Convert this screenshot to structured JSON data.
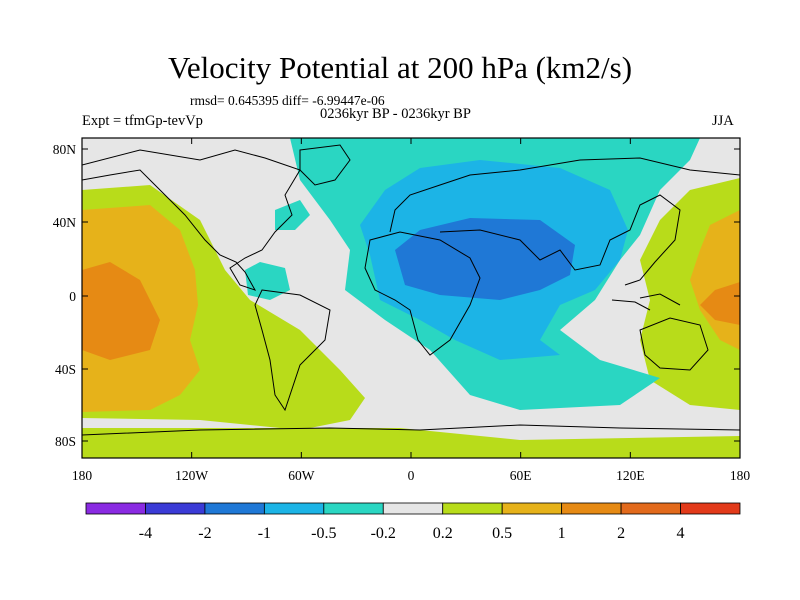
{
  "title": "Velocity Potential at 200 hPa (km2/s)",
  "stats_line": "rmsd= 0.645395 diff= -6.99447e-06",
  "subtitle": "0236kyr BP - 0236kyr BP",
  "experiment": "Expt = tfmGp-tevVp",
  "season": "JJA",
  "axes": {
    "lat_labels": [
      "80N",
      "40N",
      "0",
      "40S",
      "80S"
    ],
    "lon_labels": [
      "180",
      "120W",
      "60W",
      "0",
      "60E",
      "120E",
      "180"
    ]
  },
  "colorbar": {
    "labels": [
      "-4",
      "-2",
      "-1",
      "-0.5",
      "-0.2",
      "0.2",
      "0.5",
      "1",
      "2",
      "4"
    ],
    "colors": [
      "#8a2be2",
      "#3b3bd6",
      "#1f78d6",
      "#1cb4e6",
      "#2ad6c2",
      "#e6e6e6",
      "#b8dc1a",
      "#e6b21a",
      "#e68a14",
      "#e26a1c",
      "#e23a1a"
    ]
  },
  "fill_colors": {
    "neg_02": "#2ad6c2",
    "neg_05": "#1cb4e6",
    "neg_1": "#1f78d6",
    "neutral": "#e6e6e6",
    "pos_02": "#b8dc1a",
    "pos_05": "#e6b21a",
    "pos_1": "#e68a14"
  }
}
